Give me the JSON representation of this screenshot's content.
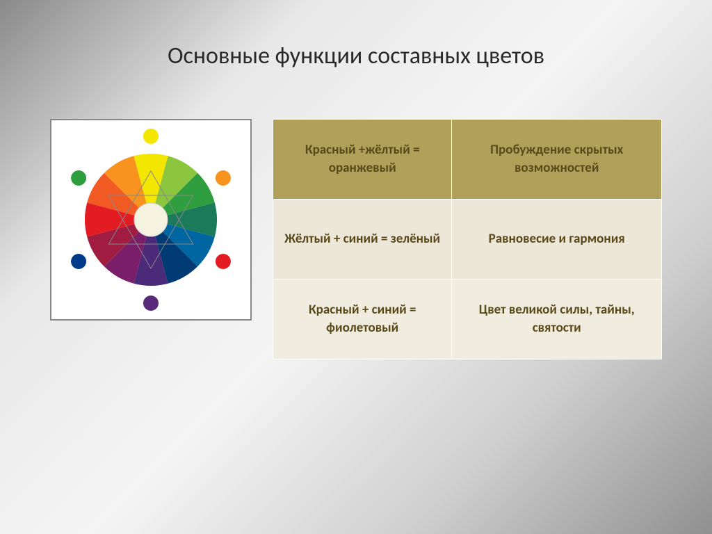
{
  "title": "Основные функции составных цветов",
  "table": {
    "rows": [
      {
        "formula": "Красный +жёлтый = оранжевый",
        "meaning": "Пробуждение скрытых возможностей",
        "row_bg": "#b0a05a"
      },
      {
        "formula": "Жёлтый + синий = зелёный",
        "meaning": "Равновесие и гармония",
        "row_bg": "#ece7d9"
      },
      {
        "formula": "Красный + синий = фиолетовый",
        "meaning": "Цвет великой силы, тайны, святости",
        "row_bg": "#f0ece0"
      }
    ],
    "border_color": "#ffffff",
    "text_color": "#5a4a1a",
    "fontsize": 19
  },
  "color_wheel": {
    "type": "color-wheel",
    "segments": [
      "#f3e600",
      "#8cc63f",
      "#2e9e3f",
      "#1b7a5a",
      "#0066a1",
      "#003b73",
      "#4b2a7a",
      "#7a1e6a",
      "#a01c40",
      "#e31b23",
      "#f15a22",
      "#f7931e"
    ],
    "center_color": "#f5f2e0",
    "outer_dots": [
      {
        "color": "#f3e600",
        "angle": -90
      },
      {
        "color": "#f7931e",
        "angle": -30
      },
      {
        "color": "#e31b23",
        "angle": 30
      },
      {
        "color": "#5a2a7a",
        "angle": 90
      },
      {
        "color": "#003b8a",
        "angle": 150
      },
      {
        "color": "#2e9e3f",
        "angle": 210
      }
    ],
    "triangle_stroke": "#888888",
    "background": "#ffffff"
  },
  "title_style": {
    "fontsize": 34,
    "color": "#2a2a2a"
  }
}
